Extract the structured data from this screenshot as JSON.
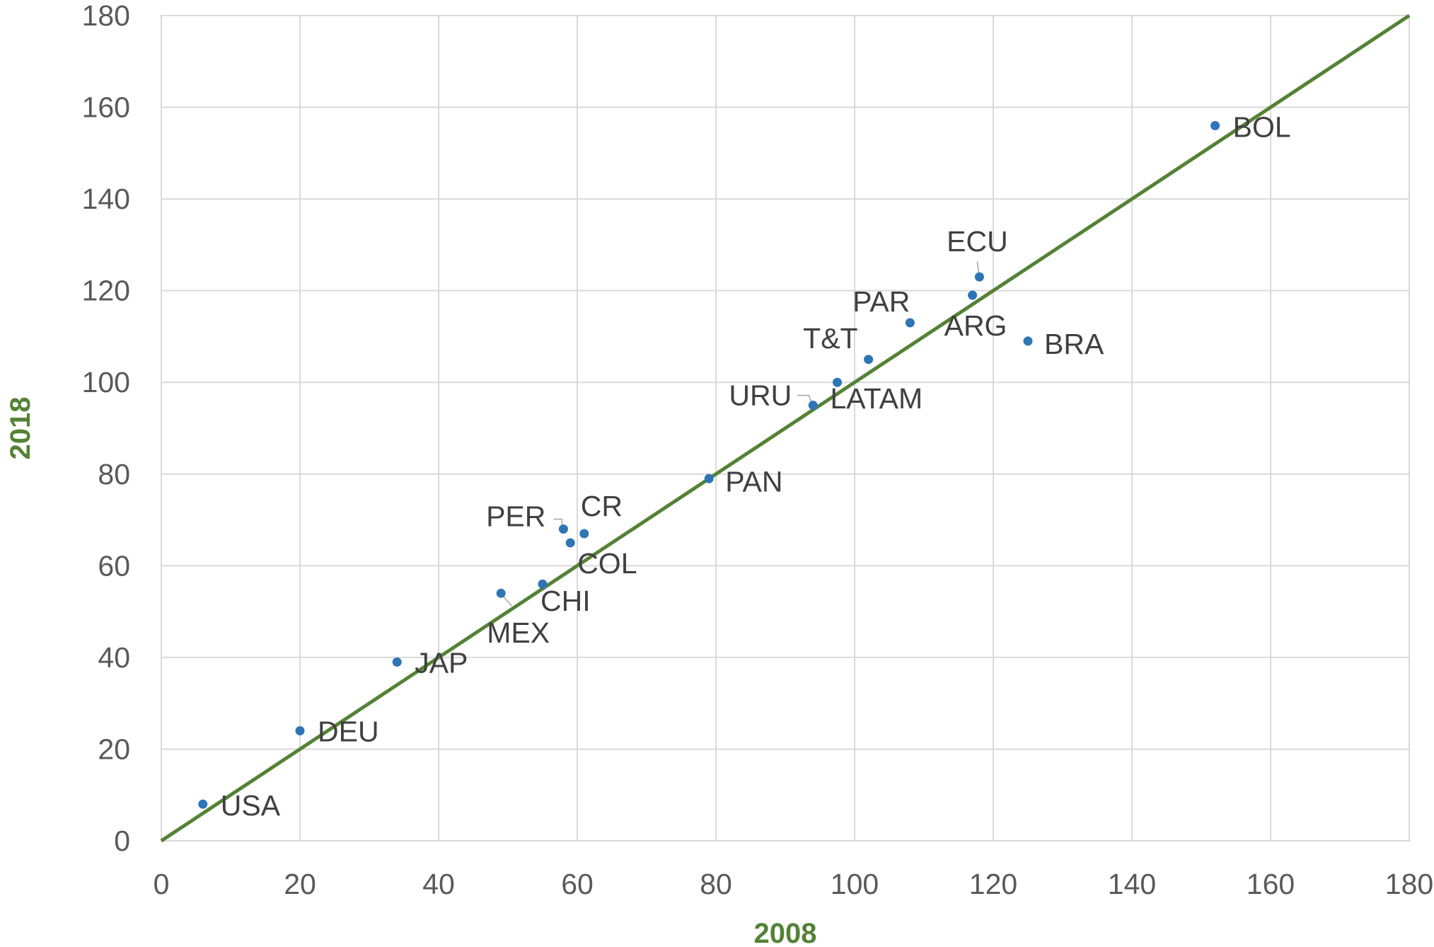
{
  "chart_data": {
    "type": "scatter",
    "xlabel": "2008",
    "ylabel": "2018",
    "xlim": [
      0,
      180
    ],
    "ylim": [
      0,
      180
    ],
    "x_ticks": [
      0,
      20,
      40,
      60,
      80,
      100,
      120,
      140,
      160,
      180
    ],
    "y_ticks": [
      0,
      20,
      40,
      60,
      80,
      100,
      120,
      140,
      160,
      180
    ],
    "grid": true,
    "legend": "none",
    "marker_color": "#2e75b6",
    "reference_line": {
      "type": "identity",
      "from": [
        0,
        0
      ],
      "to": [
        180,
        180
      ],
      "color": "#548235"
    },
    "points": [
      {
        "label": "USA",
        "x": 6,
        "y": 8
      },
      {
        "label": "DEU",
        "x": 20,
        "y": 24
      },
      {
        "label": "JAP",
        "x": 34,
        "y": 39
      },
      {
        "label": "MEX",
        "x": 49,
        "y": 54
      },
      {
        "label": "CHI",
        "x": 55,
        "y": 56
      },
      {
        "label": "PER",
        "x": 58,
        "y": 68
      },
      {
        "label": "COL",
        "x": 59,
        "y": 65
      },
      {
        "label": "CR",
        "x": 61,
        "y": 67
      },
      {
        "label": "PAN",
        "x": 79,
        "y": 79
      },
      {
        "label": "URU",
        "x": 94,
        "y": 95
      },
      {
        "label": "LATAM",
        "x": 97.5,
        "y": 100
      },
      {
        "label": "T&T",
        "x": 102,
        "y": 105
      },
      {
        "label": "PAR",
        "x": 108,
        "y": 113
      },
      {
        "label": "ARG",
        "x": 117,
        "y": 119
      },
      {
        "label": "ECU",
        "x": 118,
        "y": 123
      },
      {
        "label": "BRA",
        "x": 125,
        "y": 109
      },
      {
        "label": "BOL",
        "x": 152,
        "y": 156
      }
    ]
  }
}
